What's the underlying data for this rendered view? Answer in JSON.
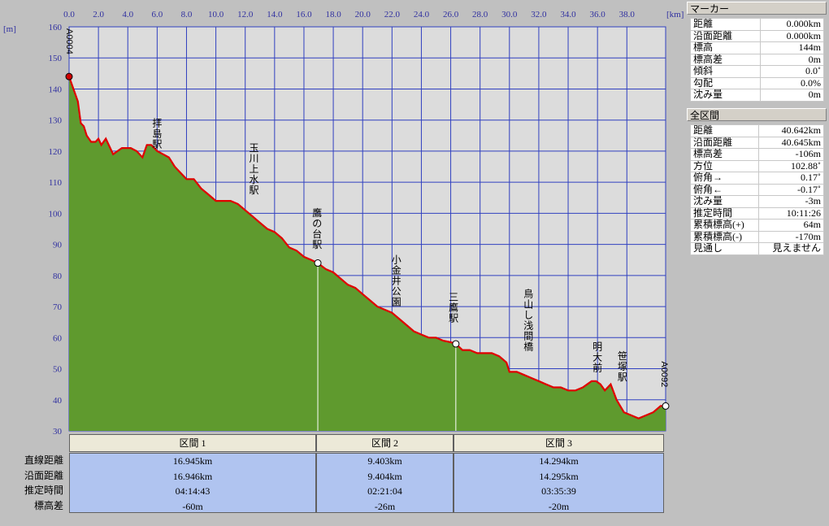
{
  "chart_data": {
    "type": "area",
    "x_unit": "[km]",
    "y_unit": "[m]",
    "xlim": [
      0,
      40.642
    ],
    "ylim": [
      30,
      160
    ],
    "x_ticks": [
      "0.0",
      "2.0",
      "4.0",
      "6.0",
      "8.0",
      "10.0",
      "12.0",
      "14.0",
      "16.0",
      "18.0",
      "20.0",
      "22.0",
      "24.0",
      "26.0",
      "28.0",
      "30.0",
      "32.0",
      "34.0",
      "36.0",
      "38.0"
    ],
    "x_tick_values": [
      0,
      2,
      4,
      6,
      8,
      10,
      12,
      14,
      16,
      18,
      20,
      22,
      24,
      26,
      28,
      30,
      32,
      34,
      36,
      38
    ],
    "y_ticks": [
      30,
      40,
      50,
      60,
      70,
      80,
      90,
      100,
      110,
      120,
      130,
      140,
      150,
      160
    ],
    "colors": {
      "plot_bg": "#dcdcdc",
      "grid": "#3040c0",
      "terrain": "#5f9a2e",
      "route": "#e00000",
      "axis_text": "#3030a0"
    },
    "series": [
      {
        "x": [
          0,
          0.3,
          0.6,
          0.8,
          1.0,
          1.2,
          1.5,
          1.8,
          2.0,
          2.2,
          2.5,
          2.8,
          3.0,
          3.3,
          3.6,
          3.9,
          4.2,
          4.6,
          5.0,
          5.3,
          5.6,
          6.0,
          6.4,
          6.8,
          7.2,
          7.6,
          8.0,
          8.5,
          9.0,
          9.5,
          10.0,
          10.5,
          11.0,
          11.5,
          12.0,
          12.5,
          13.0,
          13.5,
          14.0,
          14.5,
          15.0,
          15.5,
          16.0,
          16.5,
          16.945,
          17.5,
          18.0,
          18.5,
          19.0,
          19.5,
          20.0,
          20.5,
          21.0,
          21.5,
          22.0,
          22.5,
          23.0,
          23.5,
          24.0,
          24.5,
          25.0,
          25.5,
          26.0,
          26.348,
          26.8,
          27.3,
          27.8,
          28.3,
          28.8,
          29.3,
          29.8,
          30.0,
          30.5,
          31.0,
          31.5,
          32.0,
          32.5,
          33.0,
          33.5,
          34.0,
          34.5,
          35.0,
          35.3,
          35.6,
          35.9,
          36.2,
          36.5,
          36.9,
          37.3,
          37.8,
          38.3,
          38.8,
          39.3,
          39.8,
          40.3,
          40.642
        ],
        "y": [
          144,
          140,
          136,
          129,
          128,
          125,
          123,
          123,
          124,
          122,
          124,
          121,
          119,
          120,
          121,
          121,
          121,
          120,
          118,
          122,
          122,
          120,
          119,
          118,
          115,
          113,
          111,
          111,
          108,
          106,
          104,
          104,
          104,
          103,
          101,
          99,
          97,
          95,
          94,
          92,
          89,
          88,
          86,
          85,
          84,
          82,
          81,
          79,
          77,
          76,
          74,
          72,
          70,
          69,
          68,
          66,
          64,
          62,
          61,
          60,
          60,
          59,
          58.5,
          58,
          56,
          56,
          55,
          55,
          55,
          54,
          52,
          49,
          49,
          48,
          47,
          46,
          45,
          44,
          44,
          43,
          43,
          44,
          45,
          46,
          46,
          45,
          43,
          45,
          40,
          36,
          35,
          34,
          35,
          36,
          38,
          38
        ]
      }
    ],
    "markers": [
      {
        "x": 0,
        "y": 144,
        "label": "A0004",
        "kind": "start"
      },
      {
        "x": 16.945,
        "y": 84,
        "kind": "waypoint"
      },
      {
        "x": 26.348,
        "y": 58,
        "kind": "waypoint"
      },
      {
        "x": 40.642,
        "y": 38,
        "label": "A0092",
        "kind": "end"
      }
    ],
    "annotations": [
      {
        "x": 6.0,
        "y": 128,
        "text": "拝島駅"
      },
      {
        "x": 12.6,
        "y": 120,
        "text": "玉川上水駅"
      },
      {
        "x": 16.9,
        "y": 99,
        "text": "鷹の台駅"
      },
      {
        "x": 22.3,
        "y": 84,
        "text": "小金井公園"
      },
      {
        "x": 26.2,
        "y": 72,
        "text": "三鷹駅"
      },
      {
        "x": 31.3,
        "y": 73,
        "text": "鳥山し浅間橋"
      },
      {
        "x": 36.0,
        "y": 56,
        "text": "明大前"
      },
      {
        "x": 37.7,
        "y": 53,
        "text": "笹塚駅"
      }
    ]
  },
  "marker_panel": {
    "title": "マーカー",
    "rows": [
      {
        "label": "距離",
        "value": "0.000km"
      },
      {
        "label": "沿面距離",
        "value": "0.000km"
      },
      {
        "label": "標高",
        "value": "144m"
      },
      {
        "label": "標高差",
        "value": "0m"
      },
      {
        "label": "傾斜",
        "value": "0.0˚"
      },
      {
        "label": "勾配",
        "value": "0.0%"
      },
      {
        "label": "沈み量",
        "value": "0m"
      }
    ]
  },
  "all_panel": {
    "title": "全区間",
    "rows": [
      {
        "label": "距離",
        "value": "40.642km"
      },
      {
        "label": "沿面距離",
        "value": "40.645km"
      },
      {
        "label": "標高差",
        "value": "-106m"
      },
      {
        "label": "方位",
        "value": "102.88˚"
      },
      {
        "label": "俯角→",
        "value": "0.17˚"
      },
      {
        "label": "俯角←",
        "value": "-0.17˚"
      },
      {
        "label": "沈み量",
        "value": "-3m"
      },
      {
        "label": "推定時間",
        "value": "10:11:26"
      },
      {
        "label": "累積標高(+)",
        "value": "64m"
      },
      {
        "label": "累積標高(-)",
        "value": "-170m"
      },
      {
        "label": "見通し",
        "value": "見えません"
      }
    ]
  },
  "segment_table": {
    "row_labels": [
      "直線距離",
      "沿面距離",
      "推定時間",
      "標高差"
    ],
    "segments": [
      {
        "name": "区間 1",
        "values": [
          "16.945km",
          "16.946km",
          "04:14:43",
          "-60m"
        ]
      },
      {
        "name": "区間 2",
        "values": [
          "9.403km",
          "9.404km",
          "02:21:04",
          "-26m"
        ]
      },
      {
        "name": "区間 3",
        "values": [
          "14.294km",
          "14.295km",
          "03:35:39",
          "-20m"
        ]
      }
    ]
  }
}
